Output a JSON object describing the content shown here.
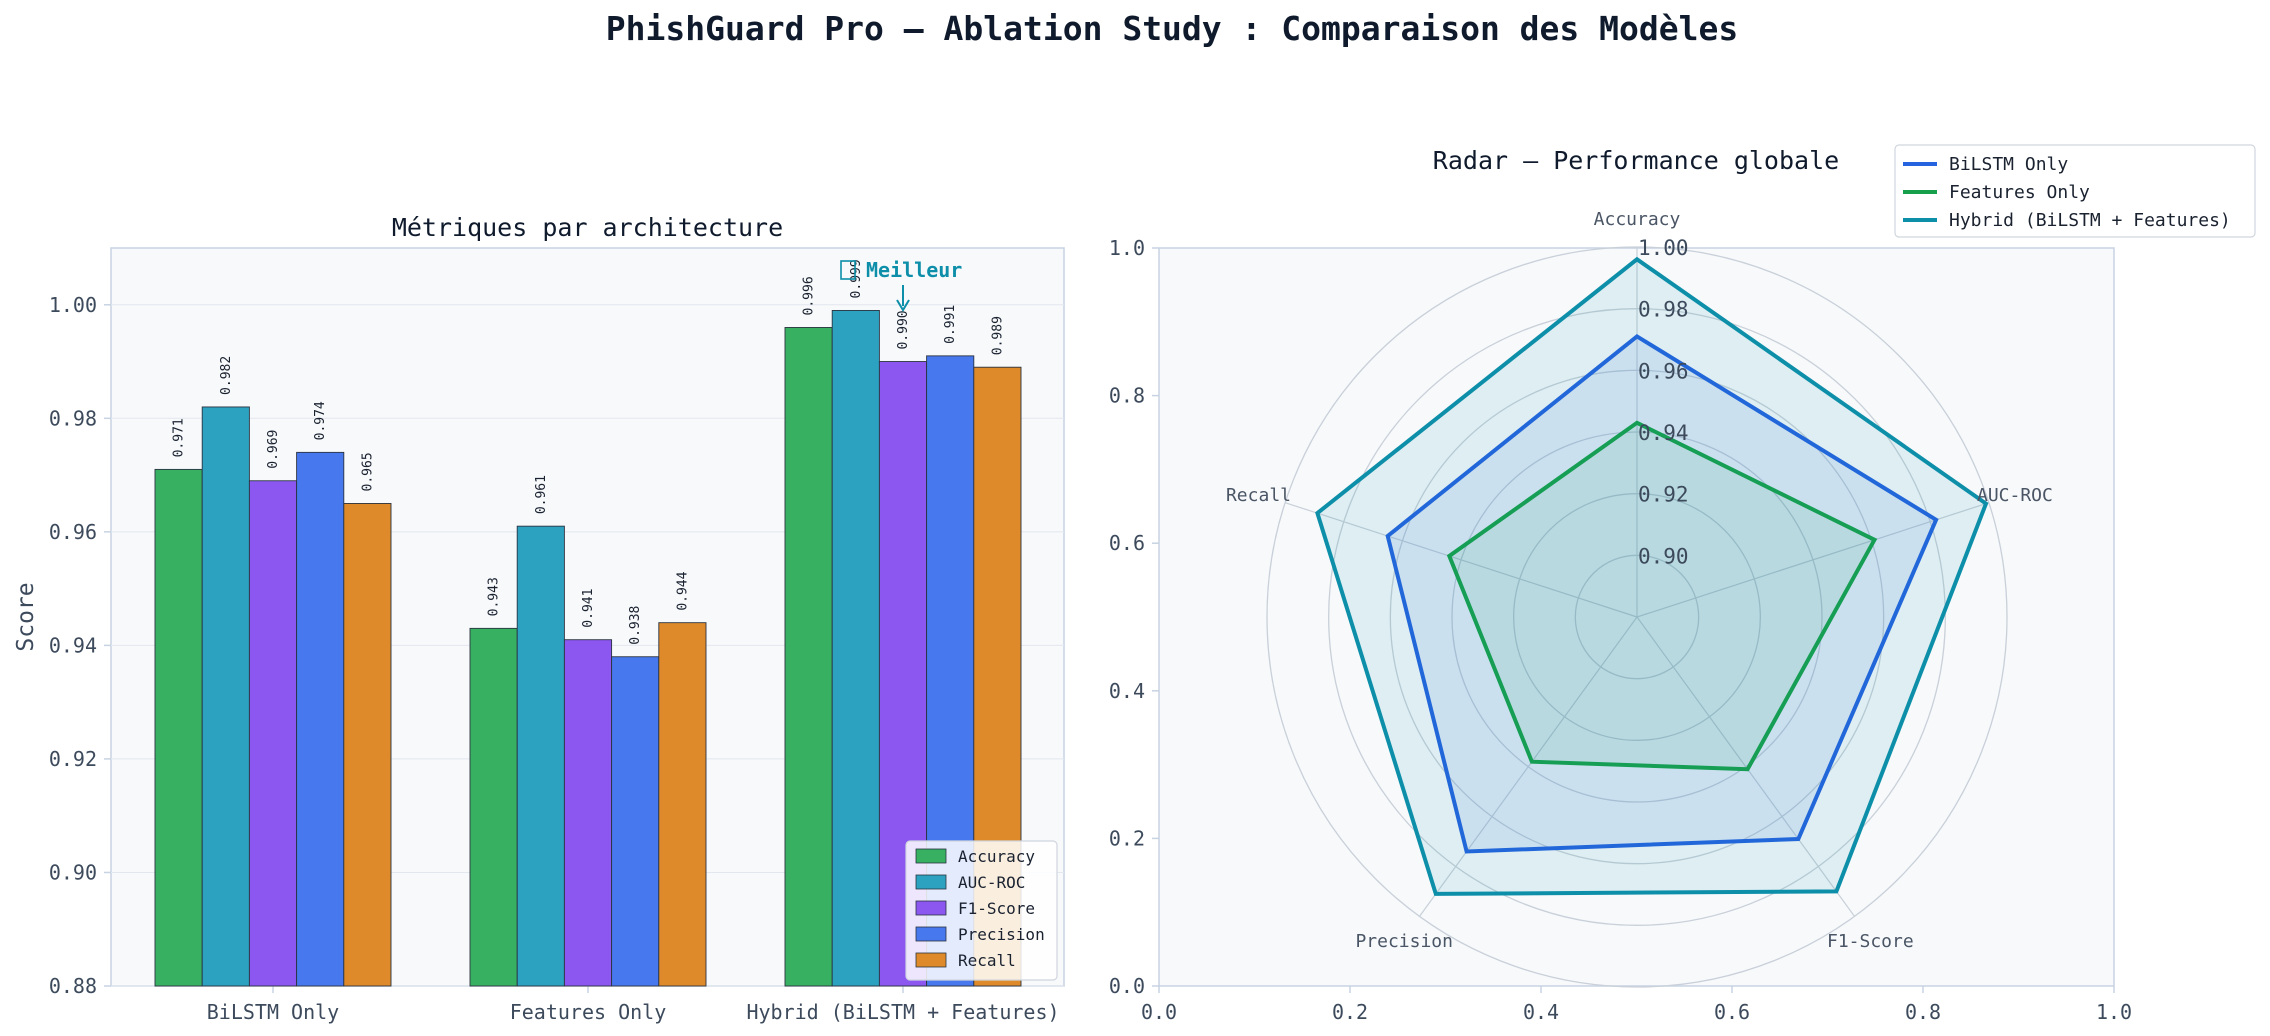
{
  "figure": {
    "title": "PhishGuard Pro — Ablation Study : Comparaison des Modèles"
  },
  "colors": {
    "accent": "#0e8fa9",
    "axes_face": "#f7f9fb",
    "axes_edge": "#c7d3e2",
    "tick_text": "#3c4a5c",
    "title_text": "#0f1b2d"
  },
  "chart_data": [
    {
      "type": "bar",
      "title": "Métriques par architecture",
      "xlabel": "",
      "ylabel": "Score",
      "ylim": [
        0.88,
        1.01
      ],
      "yticks": [
        "0.88",
        "0.90",
        "0.92",
        "0.94",
        "0.96",
        "0.98",
        "1.00"
      ],
      "grid": true,
      "legend_position": "lower-right",
      "categories": [
        "BiLSTM Only",
        "Features Only",
        "Hybrid (BiLSTM + Features)"
      ],
      "series": [
        {
          "name": "Accuracy",
          "color": "#38b062",
          "values": [
            0.971,
            0.943,
            0.996
          ],
          "labels": [
            "0.971",
            "0.943",
            "0.996"
          ]
        },
        {
          "name": "AUC-ROC",
          "color": "#2ca1c0",
          "values": [
            0.982,
            0.961,
            0.999
          ],
          "labels": [
            "0.982",
            "0.961",
            "0.999"
          ]
        },
        {
          "name": "F1-Score",
          "color": "#8b57f0",
          "values": [
            0.969,
            0.941,
            0.99
          ],
          "labels": [
            "0.969",
            "0.941",
            "0.990"
          ]
        },
        {
          "name": "Precision",
          "color": "#4778ee",
          "values": [
            0.974,
            0.938,
            0.991
          ],
          "labels": [
            "0.974",
            "0.938",
            "0.991"
          ]
        },
        {
          "name": "Recall",
          "color": "#de8a2a",
          "values": [
            0.965,
            0.944,
            0.989
          ],
          "labels": [
            "0.965",
            "0.944",
            "0.989"
          ]
        }
      ],
      "annotation": {
        "text": "Meilleur",
        "icon": "trophy-icon",
        "category": "Hybrid (BiLSTM + Features)"
      }
    },
    {
      "type": "radar",
      "title": "Radar — Performance globale",
      "axes": [
        "Accuracy",
        "AUC-ROC",
        "F1-Score",
        "Precision",
        "Recall"
      ],
      "rlim": [
        0.88,
        1.0
      ],
      "rticks": [
        "0.90",
        "0.92",
        "0.94",
        "0.96",
        "0.98",
        "1.00"
      ],
      "cartesian_ticks": [
        "0.0",
        "0.2",
        "0.4",
        "0.6",
        "0.8",
        "1.0"
      ],
      "legend_position": "upper-right",
      "series": [
        {
          "name": "BiLSTM Only",
          "color": "#2563e0",
          "fill": "#2563e0",
          "values": [
            0.971,
            0.982,
            0.969,
            0.974,
            0.965
          ]
        },
        {
          "name": "Features Only",
          "color": "#17a04b",
          "fill": "#17a04b",
          "values": [
            0.943,
            0.961,
            0.941,
            0.938,
            0.944
          ]
        },
        {
          "name": "Hybrid (BiLSTM + Features)",
          "color": "#0e8fa9",
          "fill": "#0e8fa9",
          "values": [
            0.996,
            0.999,
            0.99,
            0.991,
            0.989
          ]
        }
      ]
    }
  ]
}
